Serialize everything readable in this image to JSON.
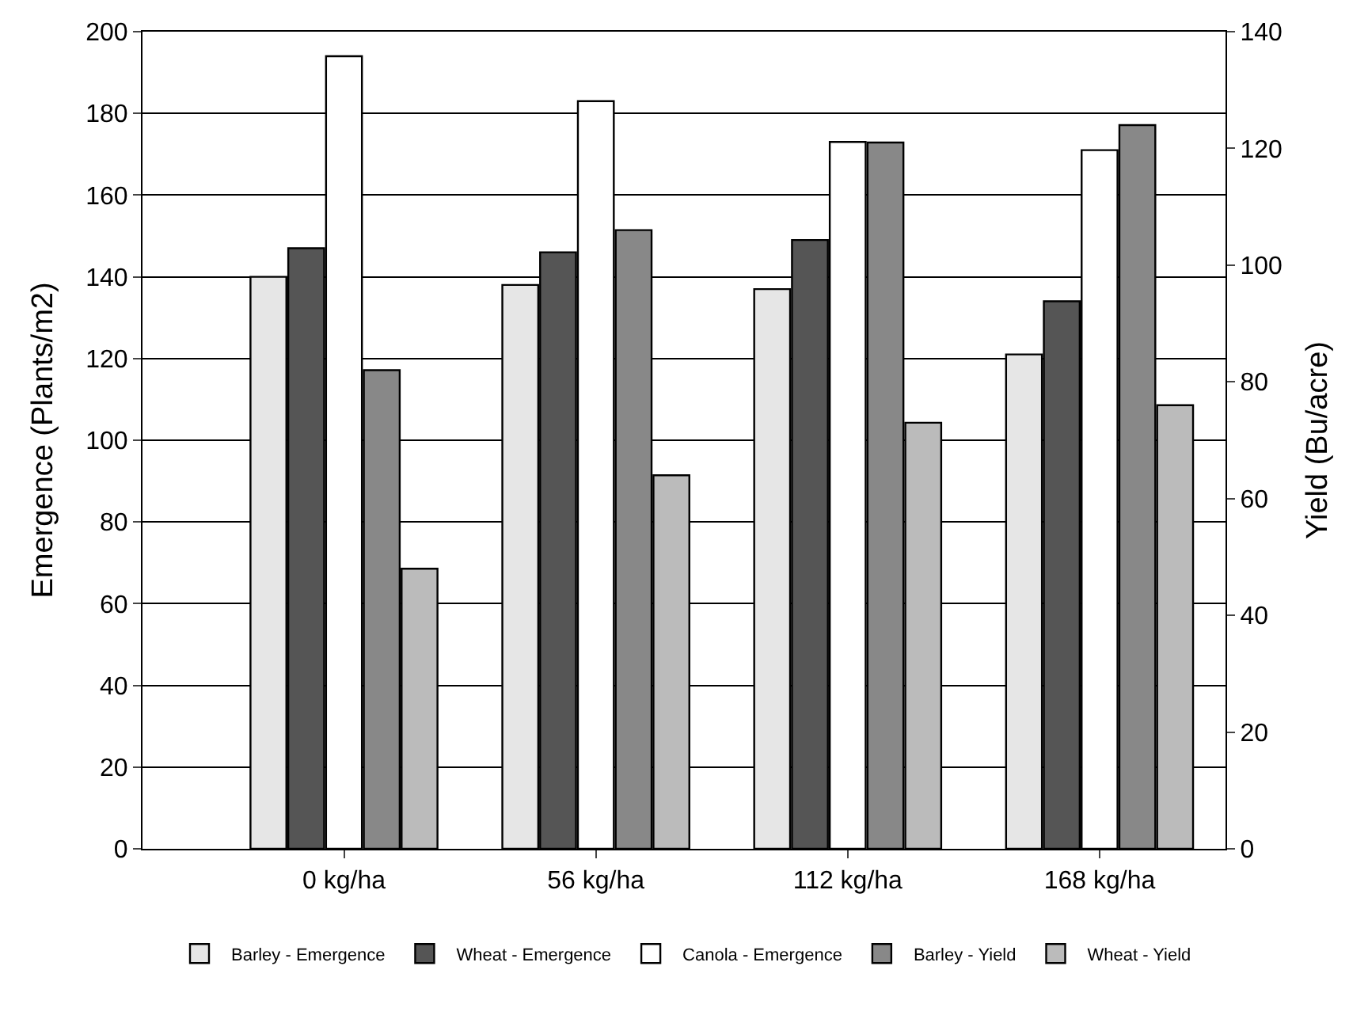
{
  "chart_data": {
    "type": "bar",
    "ylabel": "Emergence (Plants/m2)",
    "y2label": "Yield (Bu/acre)",
    "categories": [
      "0 kg/ha",
      "56 kg/ha",
      "112 kg/ha",
      "168 kg/ha"
    ],
    "series": [
      {
        "name": "Barley - Emergence",
        "color": "#e6e6e6",
        "values": [
          140,
          138,
          137,
          121
        ]
      },
      {
        "name": "Wheat - Emergence",
        "color": "#555555",
        "values": [
          147,
          146,
          149,
          134
        ]
      },
      {
        "name": "Canola - Emergence",
        "color": "#ffffff",
        "values": [
          194,
          183,
          173,
          171
        ]
      },
      {
        "name": "Barley - Yield",
        "color": "#888888",
        "values": [
          82,
          106,
          121,
          124
        ],
        "axis": "y2"
      },
      {
        "name": "Wheat - Yield",
        "color": "#bbbbbb",
        "values": [
          48,
          64,
          73,
          76
        ],
        "axis": "y2"
      }
    ],
    "ylim": [
      0,
      200
    ],
    "yticks": [
      0,
      20,
      40,
      60,
      80,
      100,
      120,
      140,
      160,
      180,
      200
    ],
    "y2lim": [
      0,
      140
    ],
    "y2ticks": [
      0,
      20,
      40,
      60,
      80,
      100,
      120,
      140
    ],
    "grid": "y",
    "legend": "bottom"
  }
}
